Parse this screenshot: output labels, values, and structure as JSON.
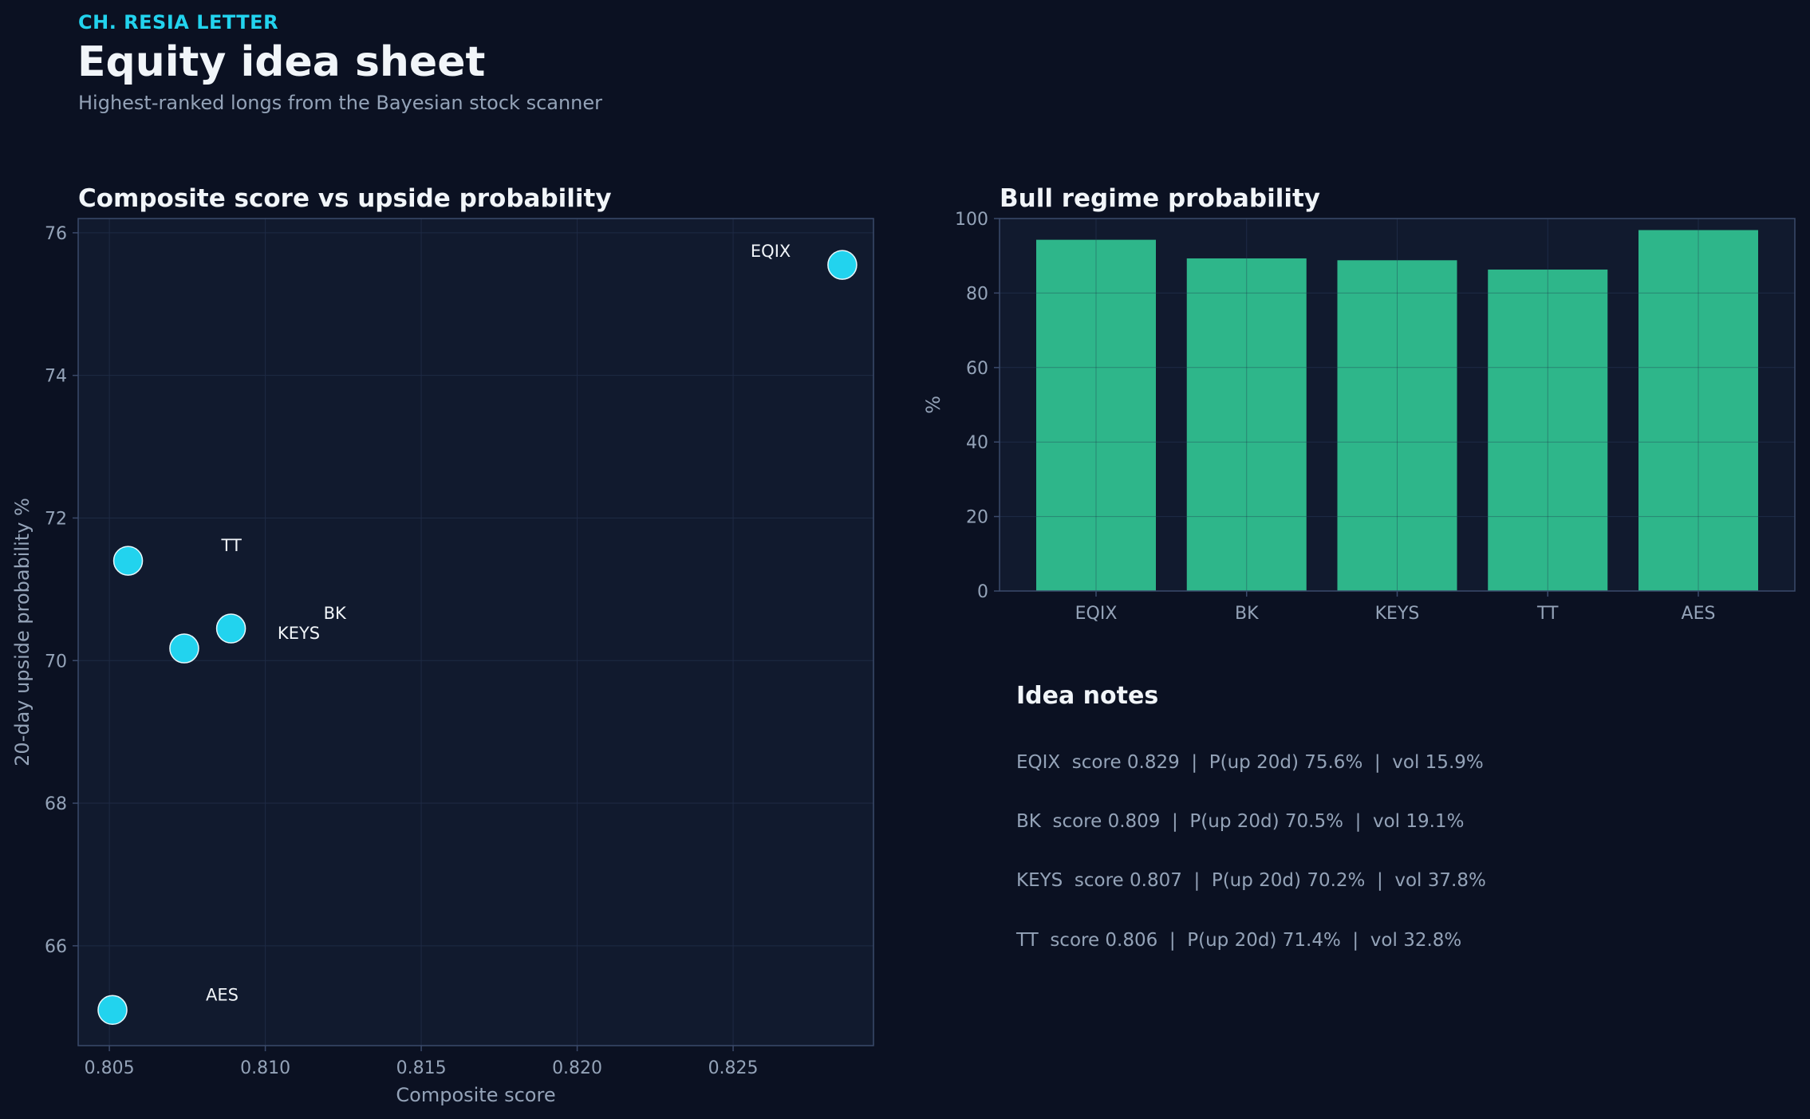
{
  "header": {
    "kicker": "CH. RESIA LETTER",
    "title": "Equity idea sheet",
    "subtitle": "Highest-ranked longs from the Bayesian stock scanner"
  },
  "colors": {
    "background": "#0b1122",
    "panel": "#111a2e",
    "accent": "#22d3ee",
    "bar": "#2eb68a"
  },
  "chart_data": [
    {
      "type": "scatter",
      "title": "Composite score vs upside probability",
      "xlabel": "Composite score",
      "ylabel": "20-day upside probability %",
      "xlim": [
        0.804,
        0.8295
      ],
      "ylim": [
        64.6,
        76.2
      ],
      "xticks": [
        0.805,
        0.81,
        0.815,
        0.82,
        0.825
      ],
      "xtick_labels": [
        "0.805",
        "0.810",
        "0.815",
        "0.820",
        "0.825"
      ],
      "yticks": [
        66,
        68,
        70,
        72,
        74,
        76
      ],
      "ytick_labels": [
        "66",
        "68",
        "70",
        "72",
        "74",
        "76"
      ],
      "grid": true,
      "points": [
        {
          "label": "EQIX",
          "x": 0.8285,
          "y": 75.55
        },
        {
          "label": "TT",
          "x": 0.8056,
          "y": 71.4
        },
        {
          "label": "BK",
          "x": 0.8089,
          "y": 70.45
        },
        {
          "label": "KEYS",
          "x": 0.8074,
          "y": 70.17
        },
        {
          "label": "AES",
          "x": 0.8051,
          "y": 65.1
        }
      ],
      "point_color": "#22d3ee"
    },
    {
      "type": "bar",
      "title": "Bull regime probability",
      "ylabel": "%",
      "ylim": [
        0,
        100
      ],
      "yticks": [
        0,
        20,
        40,
        60,
        80,
        100
      ],
      "ytick_labels": [
        "0",
        "20",
        "40",
        "60",
        "80",
        "100"
      ],
      "grid": true,
      "categories": [
        "EQIX",
        "BK",
        "KEYS",
        "TT",
        "AES"
      ],
      "values": [
        94.3,
        89.3,
        88.8,
        86.3,
        96.9
      ],
      "bar_color": "#2eb68a"
    }
  ],
  "notes": {
    "title": "Idea notes",
    "lines": [
      "EQIX  score 0.829  |  P(up 20d) 75.6%  |  vol 15.9%",
      "BK  score 0.809  |  P(up 20d) 70.5%  |  vol 19.1%",
      "KEYS  score 0.807  |  P(up 20d) 70.2%  |  vol 37.8%",
      "TT  score 0.806  |  P(up 20d) 71.4%  |  vol 32.8%"
    ]
  }
}
